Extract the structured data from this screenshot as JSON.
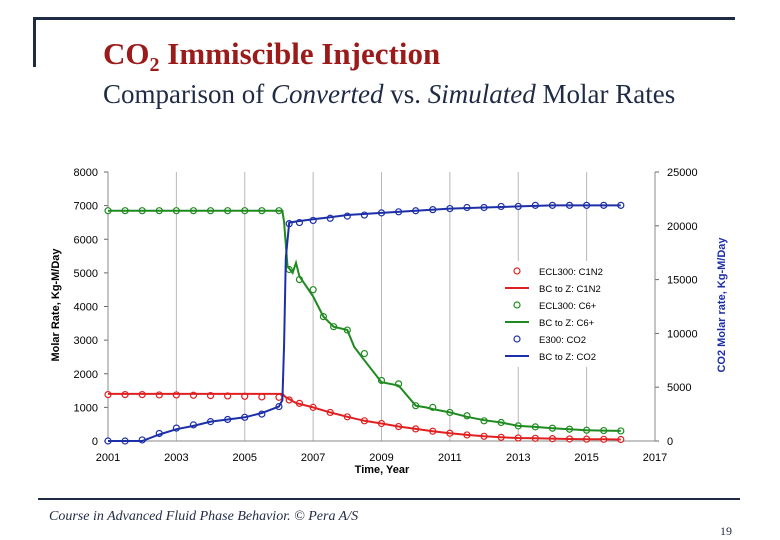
{
  "slide": {
    "title_main": "CO",
    "title_sub": "2",
    "title_rest": " Immiscible Injection",
    "subtitle_plain1": "Comparison of ",
    "subtitle_italic1": "Converted",
    "subtitle_plain2": " vs. ",
    "subtitle_italic2": "Simulated",
    "subtitle_plain3": " Molar Rates",
    "footer": "Course in Advanced Fluid Phase Behavior. © Pera A/S",
    "page_number": "19"
  },
  "colors": {
    "accent_title": "#9b1b1b",
    "frame": "#1f2a44",
    "c1n2": "#e02020",
    "c6plus": "#1f8a1f",
    "co2": "#1c2fa8",
    "grid": "#b8b8b8"
  },
  "chart_data": {
    "type": "line",
    "xlabel": "Time, Year",
    "ylabel": "Molar Rate, Kg-M/Day",
    "y2label": "CO2 Molar rate, Kg-M/Day",
    "x_ticks": [
      "2001",
      "2003",
      "2005",
      "2007",
      "2009",
      "2011",
      "2013",
      "2015",
      "2017"
    ],
    "y_ticks": [
      "0",
      "1000",
      "2000",
      "3000",
      "4000",
      "5000",
      "6000",
      "7000",
      "8000"
    ],
    "y2_ticks": [
      "0",
      "5000",
      "10000",
      "15000",
      "20000",
      "25000"
    ],
    "xlim": [
      2001,
      2017
    ],
    "ylim": [
      0,
      8000
    ],
    "y2lim": [
      0,
      25000
    ],
    "grid": "vertical",
    "legend_position": "right",
    "legend": [
      "ECL300: C1N2",
      "BC to Z: C1N2",
      "ECL300: C6+",
      "BC to Z: C6+",
      "E300: CO2",
      "BC to Z: CO2"
    ],
    "series": [
      {
        "name": "ECL300: C1N2",
        "style": "markers",
        "axis": "left",
        "color_key": "c1n2",
        "x": [
          2001,
          2001.5,
          2002,
          2002.5,
          2003,
          2003.5,
          2004,
          2004.5,
          2005,
          2005.5,
          2006,
          2006.3,
          2006.6,
          2007,
          2007.5,
          2008,
          2008.5,
          2009,
          2009.5,
          2010,
          2010.5,
          2011,
          2011.5,
          2012,
          2012.5,
          2013,
          2013.5,
          2014,
          2014.5,
          2015,
          2015.5,
          2016
        ],
        "y": [
          1380,
          1380,
          1380,
          1370,
          1370,
          1360,
          1350,
          1340,
          1330,
          1310,
          1300,
          1220,
          1120,
          1000,
          850,
          720,
          600,
          520,
          430,
          360,
          290,
          230,
          180,
          140,
          110,
          90,
          80,
          70,
          60,
          55,
          50,
          45
        ]
      },
      {
        "name": "BC to Z: C1N2",
        "style": "line",
        "axis": "left",
        "color_key": "c1n2",
        "x": [
          2001,
          2006.1,
          2006.2,
          2006.5,
          2007,
          2007.5,
          2008,
          2008.5,
          2009,
          2009.5,
          2010,
          2010.5,
          2011,
          2011.5,
          2012,
          2012.5,
          2013,
          2013.5,
          2014,
          2014.5,
          2015,
          2015.5,
          2016
        ],
        "y": [
          1400,
          1400,
          1300,
          1130,
          1000,
          850,
          720,
          600,
          520,
          430,
          360,
          290,
          230,
          180,
          140,
          110,
          90,
          80,
          70,
          60,
          55,
          50,
          45
        ]
      },
      {
        "name": "ECL300: C6+",
        "style": "markers",
        "axis": "left",
        "color_key": "c6plus",
        "x": [
          2001,
          2001.5,
          2002,
          2002.5,
          2003,
          2003.5,
          2004,
          2004.5,
          2005,
          2005.5,
          2006,
          2006.3,
          2006.6,
          2007,
          2007.3,
          2007.6,
          2008,
          2008.5,
          2009,
          2009.5,
          2010,
          2010.5,
          2011,
          2011.5,
          2012,
          2012.5,
          2013,
          2013.5,
          2014,
          2014.5,
          2015,
          2015.5,
          2016
        ],
        "y": [
          6850,
          6850,
          6850,
          6850,
          6850,
          6850,
          6850,
          6850,
          6850,
          6850,
          6850,
          5100,
          4800,
          4500,
          3700,
          3400,
          3300,
          2600,
          1800,
          1700,
          1050,
          1000,
          850,
          750,
          600,
          550,
          450,
          420,
          380,
          350,
          320,
          310,
          300
        ]
      },
      {
        "name": "BC to Z: C6+",
        "style": "line",
        "axis": "left",
        "color_key": "c6plus",
        "x": [
          2001,
          2006.1,
          2006.15,
          2006.25,
          2006.4,
          2006.5,
          2006.6,
          2007,
          2007.3,
          2007.6,
          2008,
          2008.2,
          2008.5,
          2009,
          2009.5,
          2010,
          2010.3,
          2010.5,
          2011,
          2011.5,
          2012,
          2012.5,
          2013,
          2013.5,
          2014,
          2014.5,
          2015,
          2015.5,
          2016
        ],
        "y": [
          6850,
          6850,
          6500,
          5200,
          5000,
          5300,
          4900,
          4300,
          3700,
          3400,
          3300,
          2800,
          2400,
          1750,
          1650,
          1050,
          1000,
          950,
          850,
          720,
          620,
          550,
          450,
          420,
          380,
          350,
          320,
          310,
          300
        ]
      },
      {
        "name": "E300: CO2",
        "style": "markers",
        "axis": "right",
        "color_key": "co2",
        "x": [
          2001,
          2001.5,
          2002,
          2002.5,
          2003,
          2003.5,
          2004,
          2004.5,
          2005,
          2005.5,
          2006,
          2006.3,
          2006.6,
          2007,
          2007.5,
          2008,
          2008.5,
          2009,
          2009.5,
          2010,
          2010.5,
          2011,
          2011.5,
          2012,
          2012.5,
          2013,
          2013.5,
          2014,
          2014.5,
          2015,
          2015.5,
          2016
        ],
        "y": [
          0,
          0,
          100,
          700,
          1200,
          1500,
          1800,
          2000,
          2200,
          2500,
          3200,
          20200,
          20300,
          20500,
          20700,
          20900,
          21000,
          21200,
          21300,
          21400,
          21500,
          21600,
          21700,
          21700,
          21800,
          21800,
          21900,
          21900,
          21900,
          21900,
          21900,
          21900
        ]
      },
      {
        "name": "BC to Z: CO2",
        "style": "line",
        "axis": "right",
        "color_key": "co2",
        "x": [
          2001,
          2002,
          2002.5,
          2003,
          2003.5,
          2004,
          2004.5,
          2005,
          2005.5,
          2006,
          2006.1,
          2006.15,
          2006.2,
          2006.3,
          2006.5,
          2007,
          2007.5,
          2008,
          2009,
          2010,
          2011,
          2012,
          2013,
          2014,
          2015,
          2016
        ],
        "y": [
          0,
          0,
          600,
          1100,
          1400,
          1800,
          2000,
          2200,
          2600,
          3200,
          3800,
          9000,
          17000,
          20300,
          20400,
          20600,
          20800,
          21000,
          21200,
          21400,
          21600,
          21700,
          21800,
          21900,
          21900,
          21900
        ]
      }
    ]
  }
}
